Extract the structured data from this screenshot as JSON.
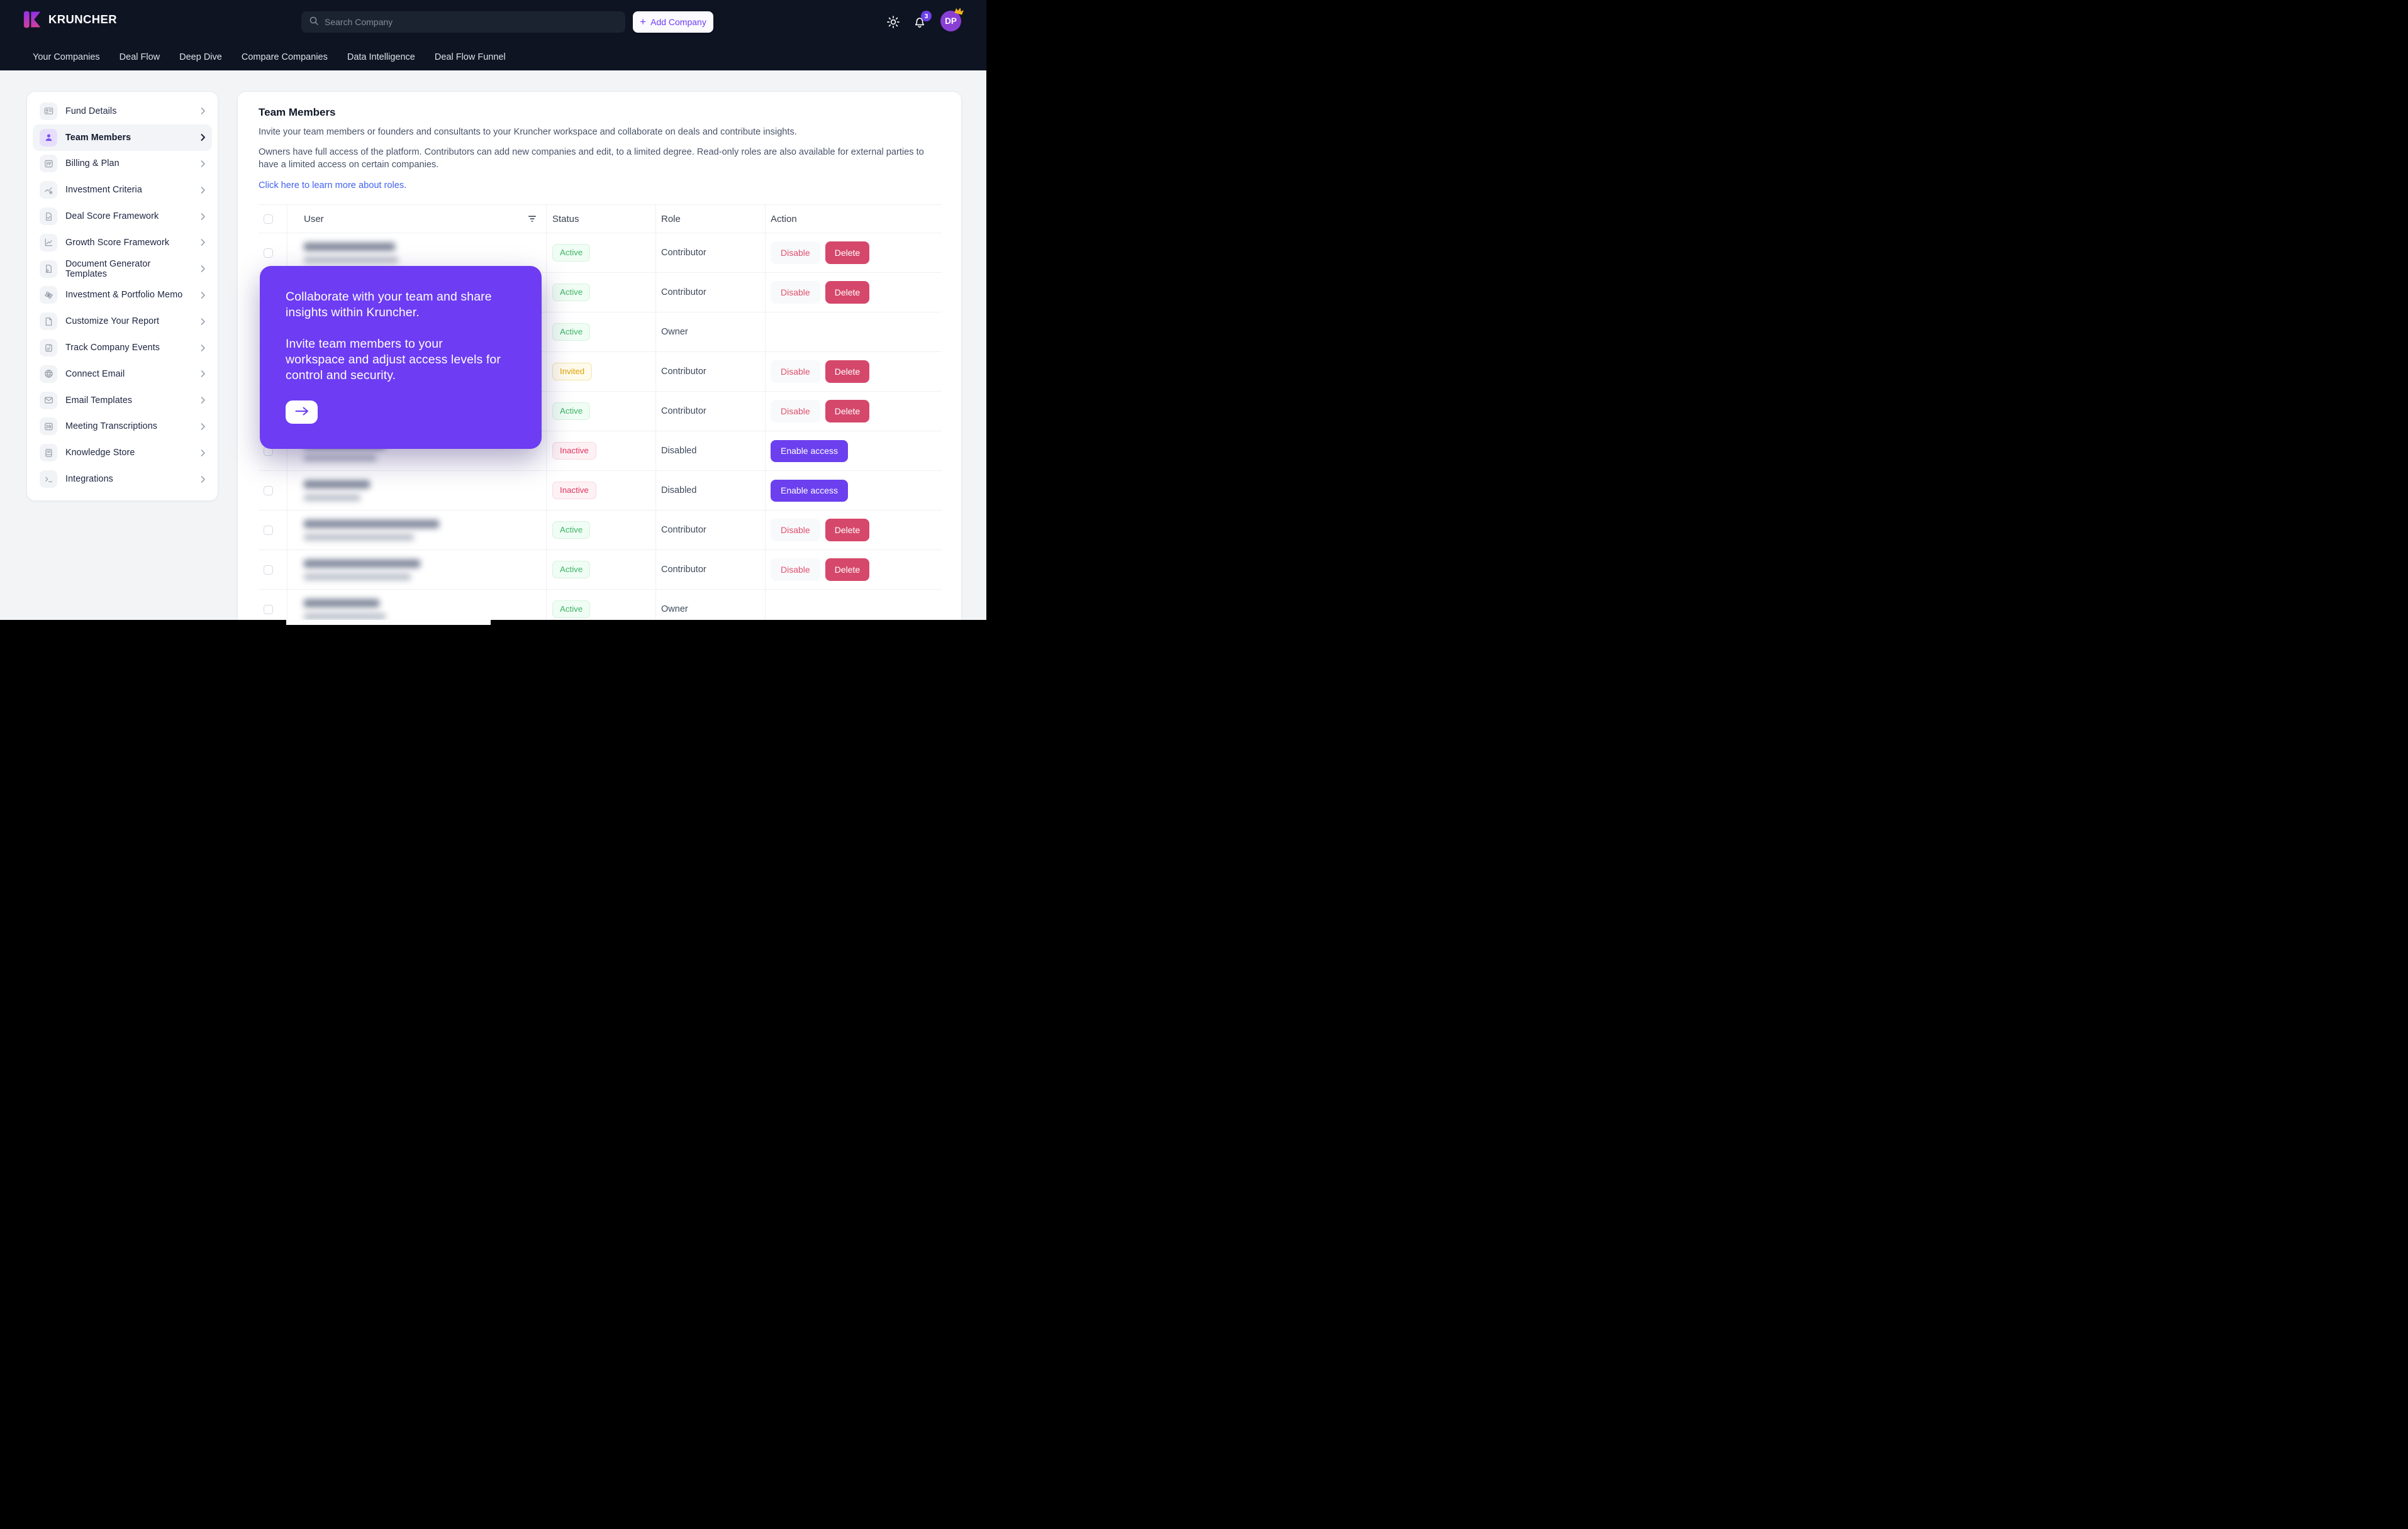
{
  "header": {
    "brand": "KRUNCHER",
    "search_placeholder": "Search Company",
    "add_company_label": "Add Company",
    "notification_count": "3",
    "avatar_initials": "DP",
    "nav_items": [
      "Your Companies",
      "Deal Flow",
      "Deep Dive",
      "Compare Companies",
      "Data Intelligence",
      "Deal Flow Funnel"
    ]
  },
  "sidebar": {
    "items": [
      {
        "label": "Fund Details",
        "icon": "id-card-icon",
        "active": false
      },
      {
        "label": "Team Members",
        "icon": "user-icon",
        "active": true
      },
      {
        "label": "Billing & Plan",
        "icon": "billing-icon",
        "active": false
      },
      {
        "label": "Investment Criteria",
        "icon": "chart-star-icon",
        "active": false
      },
      {
        "label": "Deal Score Framework",
        "icon": "file-check-icon",
        "active": false
      },
      {
        "label": "Growth Score Framework",
        "icon": "line-chart-icon",
        "active": false
      },
      {
        "label": "Document Generator Templates",
        "icon": "file-clip-icon",
        "active": false
      },
      {
        "label": "Investment & Portfolio Memo",
        "icon": "atom-icon",
        "active": false
      },
      {
        "label": "Customize Your Report",
        "icon": "file-icon",
        "active": false
      },
      {
        "label": "Track Company Events",
        "icon": "note-icon",
        "active": false
      },
      {
        "label": "Connect Email",
        "icon": "globe-icon",
        "active": false
      },
      {
        "label": "Email Templates",
        "icon": "mail-icon",
        "active": false
      },
      {
        "label": "Meeting Transcriptions",
        "icon": "equalizer-icon",
        "active": false
      },
      {
        "label": "Knowledge Store",
        "icon": "book-icon",
        "active": false
      },
      {
        "label": "Integrations",
        "icon": "terminal-icon",
        "active": false
      }
    ]
  },
  "main": {
    "title": "Team Members",
    "description_1": "Invite your team members or founders and consultants to your Kruncher workspace and collaborate on deals and contribute insights.",
    "description_2": "Owners have full access of the platform. Contributors can add new companies and edit, to a limited degree. Read-only roles are also available for external parties to\nhave a limited access on certain companies.",
    "link_label": "Click here to learn more about roles.",
    "table": {
      "columns": [
        "User",
        "Status",
        "Role",
        "Action"
      ],
      "rows": [
        {
          "status": "Active",
          "status_type": "active",
          "role": "Contributor",
          "actions": [
            "Disable",
            "Delete"
          ],
          "name_w": 145,
          "email_w": 150
        },
        {
          "status": "Active",
          "status_type": "active",
          "role": "Contributor",
          "actions": [
            "Disable",
            "Delete"
          ],
          "name_w": 150,
          "email_w": 140
        },
        {
          "status": "Active",
          "status_type": "active",
          "role": "Owner",
          "actions": [],
          "name_w": 140,
          "email_w": 135
        },
        {
          "status": "Invited",
          "status_type": "invited",
          "role": "Contributor",
          "actions": [
            "Disable",
            "Delete"
          ],
          "name_w": 150,
          "email_w": 145
        },
        {
          "status": "Active",
          "status_type": "active",
          "role": "Contributor",
          "actions": [
            "Disable",
            "Delete"
          ],
          "name_w": 150,
          "email_w": 140
        },
        {
          "status": "Inactive",
          "status_type": "inactive",
          "role": "Disabled",
          "actions": [
            "Enable access"
          ],
          "name_w": 130,
          "email_w": 115
        },
        {
          "status": "Inactive",
          "status_type": "inactive",
          "role": "Disabled",
          "actions": [
            "Enable access"
          ],
          "name_w": 105,
          "email_w": 90
        },
        {
          "status": "Active",
          "status_type": "active",
          "role": "Contributor",
          "actions": [
            "Disable",
            "Delete"
          ],
          "name_w": 215,
          "email_w": 175
        },
        {
          "status": "Active",
          "status_type": "active",
          "role": "Contributor",
          "actions": [
            "Disable",
            "Delete"
          ],
          "name_w": 185,
          "email_w": 170
        },
        {
          "status": "Active",
          "status_type": "active",
          "role": "Owner",
          "actions": [],
          "name_w": 120,
          "email_w": 130
        }
      ]
    }
  },
  "popover": {
    "paragraph_1": "Collaborate with your team and share\ninsights within Kruncher.",
    "paragraph_2": "Invite team members to your\nworkspace and adjust access levels for\ncontrol and security.",
    "next_button": "arrow-right"
  },
  "colors": {
    "topbar-bg": "#0e1422",
    "accent-purple": "#6D3CF3",
    "enable-purple": "#6C40EE",
    "delete-red": "#D5486B",
    "disable-text": "#E0506E",
    "active-green": "#3FB365",
    "invited-yellow": "#DFA100",
    "inactive-red": "#DF3560",
    "link-blue": "#4361EE",
    "avatar-purple": "#8A3FD4",
    "badge-purple": "#6C42E8",
    "crown-gold": "#F1B31C"
  }
}
